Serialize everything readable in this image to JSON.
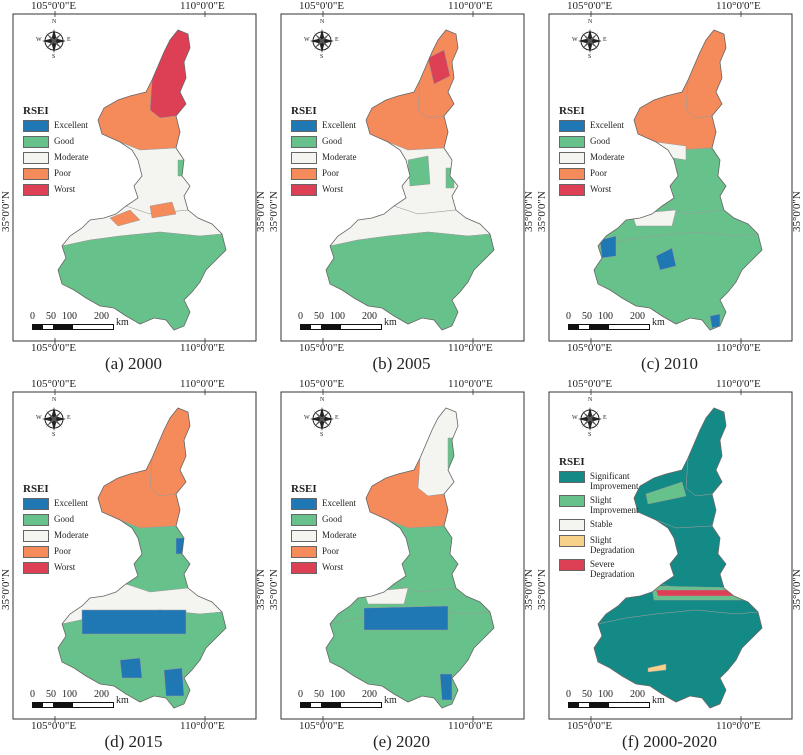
{
  "coords": {
    "lon_left": "105°0'0\"E",
    "lon_right": "110°0'0\"E",
    "lat": "35°0'0\"N"
  },
  "compass": {
    "n": "N",
    "s": "S",
    "e": "E",
    "w": "W"
  },
  "scale": {
    "labels": [
      "0",
      "50",
      "100",
      "200"
    ],
    "unit": "km"
  },
  "legend_rsei": {
    "title": "RSEI",
    "items": [
      {
        "label": "Excellent",
        "color": "#1f78b4"
      },
      {
        "label": "Good",
        "color": "#66c28a"
      },
      {
        "label": "Moderate",
        "color": "#f4f4f0"
      },
      {
        "label": "Poor",
        "color": "#f58a5a"
      },
      {
        "label": "Worst",
        "color": "#dd3f55"
      }
    ]
  },
  "legend_change": {
    "title": "RSEI",
    "items": [
      {
        "label": "Significant Improvement",
        "color": "#138a86"
      },
      {
        "label": "Slight Improvement",
        "color": "#66c28a"
      },
      {
        "label": "Stable",
        "color": "#f4f4f0"
      },
      {
        "label": "Slight Degradation",
        "color": "#f7d08a"
      },
      {
        "label": "Severe Degradation",
        "color": "#dd3f55"
      }
    ]
  },
  "panels": [
    {
      "caption": "(a) 2000"
    },
    {
      "caption": "(b) 2005"
    },
    {
      "caption": "(c) 2010"
    },
    {
      "caption": "(d) 2015"
    },
    {
      "caption": "(e) 2020"
    },
    {
      "caption": "(f) 2000-2020"
    }
  ]
}
